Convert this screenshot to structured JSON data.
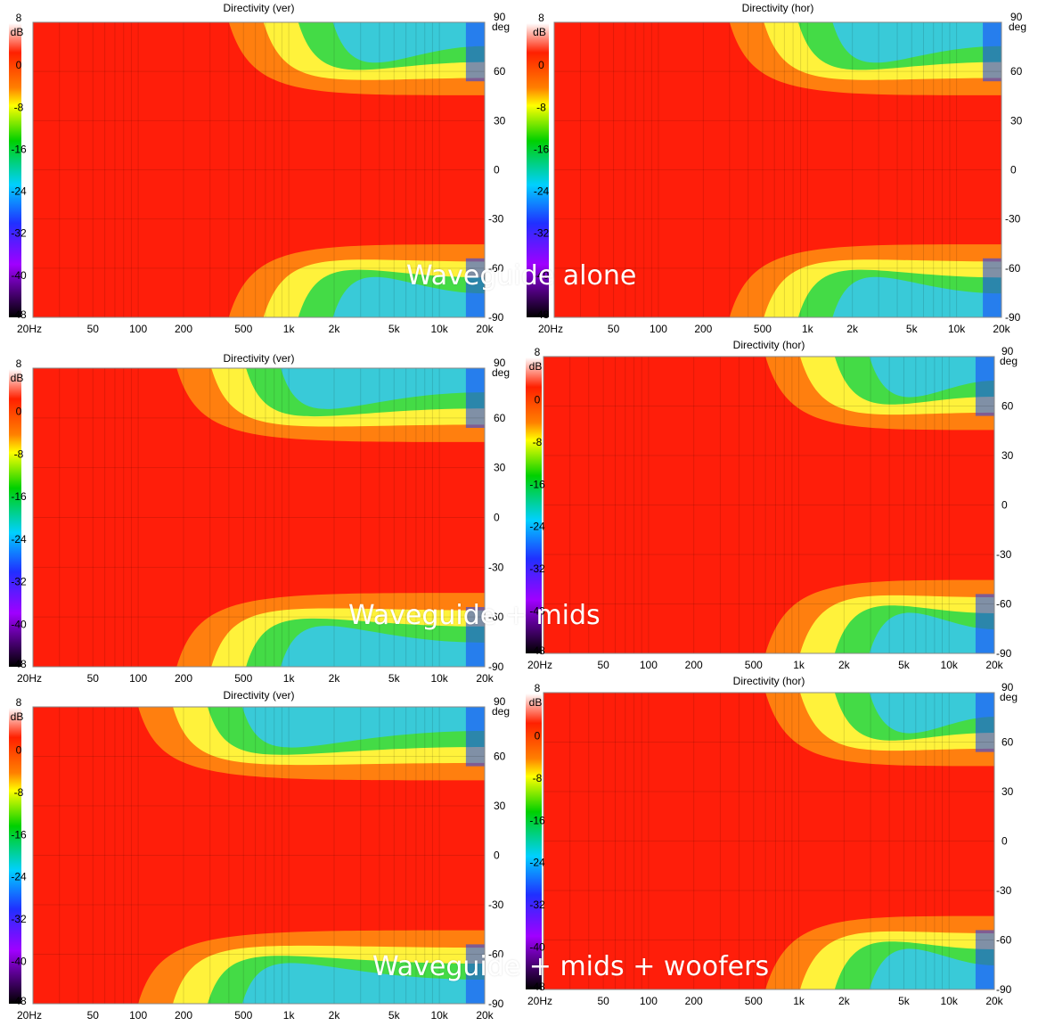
{
  "overlays": {
    "row1": "Waveguide alone",
    "row2": "Waveguide + mids",
    "row3": "Waveguide + mids + woofers"
  },
  "chart_data": [
    {
      "type": "heatmap",
      "title": "Directivity (ver)",
      "config": "waveguide",
      "x_ticks": [
        "20Hz",
        "50",
        "100",
        "200",
        "500",
        "1k",
        "2k",
        "5k",
        "10k",
        "20k"
      ],
      "y_ticks": [
        "90",
        "60",
        "30",
        "0",
        "-30",
        "-60",
        "-90"
      ],
      "y_unit": "deg",
      "cbar_ticks": [
        "8",
        "0",
        "-8",
        "-16",
        "-24",
        "-32",
        "-40",
        "-48"
      ],
      "cbar_unit": "dB",
      "xlim": [
        20,
        20000
      ],
      "x_scale": "log",
      "ylim": [
        -90,
        90
      ],
      "zlim": [
        -48,
        8
      ],
      "colors": {
        "red": "#ff1e0a",
        "yellow": "#ffff40",
        "green": "#20d040",
        "cyan": "#30c8e8",
        "blue": "#1840ff"
      }
    },
    {
      "type": "heatmap",
      "title": "Directivity (hor)",
      "config": "waveguide",
      "x_ticks": [
        "20Hz",
        "50",
        "100",
        "200",
        "500",
        "1k",
        "2k",
        "5k",
        "10k",
        "20k"
      ],
      "y_ticks": [
        "90",
        "60",
        "30",
        "0",
        "-30",
        "-60",
        "-90"
      ],
      "y_unit": "deg",
      "cbar_ticks": [
        "8",
        "0",
        "-8",
        "-16",
        "-24",
        "-32",
        "-40",
        "-48"
      ],
      "cbar_unit": "dB",
      "xlim": [
        20,
        20000
      ],
      "x_scale": "log",
      "ylim": [
        -90,
        90
      ],
      "zlim": [
        -48,
        8
      ]
    },
    {
      "type": "heatmap",
      "title": "Directivity (ver)",
      "config": "mids",
      "x_ticks": [
        "20Hz",
        "50",
        "100",
        "200",
        "500",
        "1k",
        "2k",
        "5k",
        "10k",
        "20k"
      ],
      "y_ticks": [
        "90",
        "60",
        "30",
        "0",
        "-30",
        "-60",
        "-90"
      ],
      "y_unit": "deg",
      "cbar_ticks": [
        "8",
        "0",
        "-8",
        "-16",
        "-24",
        "-32",
        "-40",
        "-48"
      ],
      "cbar_unit": "dB",
      "xlim": [
        20,
        20000
      ],
      "x_scale": "log",
      "ylim": [
        -90,
        90
      ],
      "zlim": [
        -48,
        8
      ]
    },
    {
      "type": "heatmap",
      "title": "Directivity (hor)",
      "config": "mids",
      "x_ticks": [
        "20Hz",
        "50",
        "100",
        "200",
        "500",
        "1k",
        "2k",
        "5k",
        "10k",
        "20k"
      ],
      "y_ticks": [
        "90",
        "60",
        "30",
        "0",
        "-30",
        "-60",
        "-90"
      ],
      "y_unit": "deg",
      "cbar_ticks": [
        "8",
        "0",
        "-8",
        "-16",
        "-24",
        "-32",
        "-40",
        "-48"
      ],
      "cbar_unit": "dB",
      "xlim": [
        20,
        20000
      ],
      "x_scale": "log",
      "ylim": [
        -90,
        90
      ],
      "zlim": [
        -48,
        8
      ]
    },
    {
      "type": "heatmap",
      "title": "Directivity (ver)",
      "config": "woofers",
      "x_ticks": [
        "20Hz",
        "50",
        "100",
        "200",
        "500",
        "1k",
        "2k",
        "5k",
        "10k",
        "20k"
      ],
      "y_ticks": [
        "90",
        "60",
        "30",
        "0",
        "-30",
        "-60",
        "-90"
      ],
      "y_unit": "deg",
      "cbar_ticks": [
        "8",
        "0",
        "-8",
        "-16",
        "-24",
        "-32",
        "-40",
        "-48"
      ],
      "cbar_unit": "dB",
      "xlim": [
        20,
        20000
      ],
      "x_scale": "log",
      "ylim": [
        -90,
        90
      ],
      "zlim": [
        -48,
        8
      ]
    },
    {
      "type": "heatmap",
      "title": "Directivity (hor)",
      "config": "woofers",
      "x_ticks": [
        "20Hz",
        "50",
        "100",
        "200",
        "500",
        "1k",
        "2k",
        "5k",
        "10k",
        "20k"
      ],
      "y_ticks": [
        "90",
        "60",
        "30",
        "0",
        "-30",
        "-60",
        "-90"
      ],
      "y_unit": "deg",
      "cbar_ticks": [
        "8",
        "0",
        "-8",
        "-16",
        "-24",
        "-32",
        "-40",
        "-48"
      ],
      "cbar_unit": "dB",
      "xlim": [
        20,
        20000
      ],
      "x_scale": "log",
      "ylim": [
        -90,
        90
      ],
      "zlim": [
        -48,
        8
      ]
    }
  ]
}
